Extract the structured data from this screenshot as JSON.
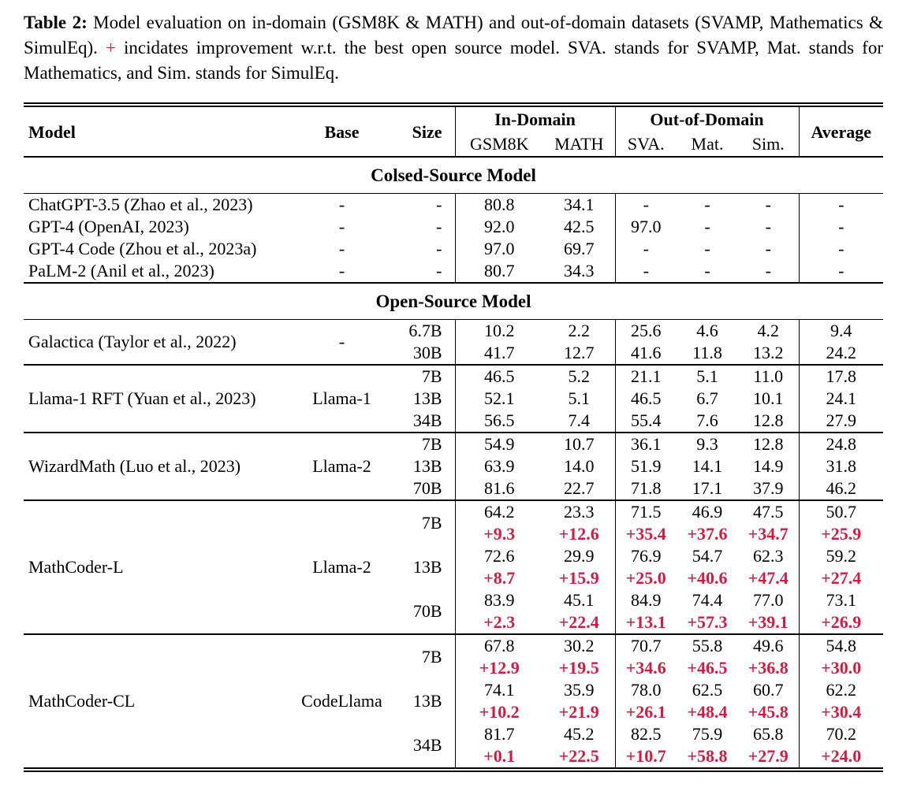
{
  "caption": {
    "label": "Table 2:",
    "before_plus": "  Model evaluation on in-domain (GSM8K & MATH) and out-of-domain datasets (SVAMP, Mathematics & SimulEq). ",
    "plus": "+",
    "after_plus": " incidates improvement w.r.t. the best open source model. SVA. stands for SVAMP, Mat. stands for Mathematics, and Sim. stands for SimulEq."
  },
  "colors": {
    "improvement_red": "#d01c42",
    "text_black": "#000000",
    "background": "#ffffff"
  },
  "header": {
    "model": "Model",
    "base": "Base",
    "size": "Size",
    "in_domain": "In-Domain",
    "out_of_domain": "Out-of-Domain",
    "average": "Average",
    "sub": [
      "GSM8K",
      "MATH",
      "SVA.",
      "Mat.",
      "Sim."
    ]
  },
  "sections": [
    {
      "title": "Colsed-Source Model",
      "groups": [
        {
          "model": "ChatGPT-3.5 (Zhao et al., 2023)",
          "base": "-",
          "rows": [
            {
              "size": "-",
              "values": [
                "80.8",
                "34.1",
                "-",
                "-",
                "-",
                "-"
              ]
            }
          ]
        },
        {
          "model": "GPT-4 (OpenAI, 2023)",
          "base": "-",
          "rows": [
            {
              "size": "-",
              "values": [
                "92.0",
                "42.5",
                "97.0",
                "-",
                "-",
                "-"
              ]
            }
          ]
        },
        {
          "model": "GPT-4 Code (Zhou et al., 2023a)",
          "base": "-",
          "rows": [
            {
              "size": "-",
              "values": [
                "97.0",
                "69.7",
                "-",
                "-",
                "-",
                "-"
              ]
            }
          ]
        },
        {
          "model": "PaLM-2 (Anil et al., 2023)",
          "base": "-",
          "rows": [
            {
              "size": "-",
              "values": [
                "80.7",
                "34.3",
                "-",
                "-",
                "-",
                "-"
              ]
            }
          ]
        }
      ]
    },
    {
      "title": "Open-Source Model",
      "groups": [
        {
          "model": "Galactica (Taylor et al., 2022)",
          "base": "-",
          "rows": [
            {
              "size": "6.7B",
              "values": [
                "10.2",
                "2.2",
                "25.6",
                "4.6",
                "4.2",
                "9.4"
              ]
            },
            {
              "size": "30B",
              "values": [
                "41.7",
                "12.7",
                "41.6",
                "11.8",
                "13.2",
                "24.2"
              ]
            }
          ]
        },
        {
          "model": "Llama-1 RFT (Yuan et al., 2023)",
          "base": "Llama-1",
          "rows": [
            {
              "size": "7B",
              "values": [
                "46.5",
                "5.2",
                "21.1",
                "5.1",
                "11.0",
                "17.8"
              ]
            },
            {
              "size": "13B",
              "values": [
                "52.1",
                "5.1",
                "46.5",
                "6.7",
                "10.1",
                "24.1"
              ]
            },
            {
              "size": "34B",
              "values": [
                "56.5",
                "7.4",
                "55.4",
                "7.6",
                "12.8",
                "27.9"
              ]
            }
          ]
        },
        {
          "model": "WizardMath (Luo et al., 2023)",
          "base": "Llama-2",
          "rows": [
            {
              "size": "7B",
              "values": [
                "54.9",
                "10.7",
                "36.1",
                "9.3",
                "12.8",
                "24.8"
              ]
            },
            {
              "size": "13B",
              "values": [
                "63.9",
                "14.0",
                "51.9",
                "14.1",
                "14.9",
                "31.8"
              ]
            },
            {
              "size": "70B",
              "values": [
                "81.6",
                "22.7",
                "71.8",
                "17.1",
                "37.9",
                "46.2"
              ]
            }
          ]
        },
        {
          "model": "MathCoder-L",
          "base": "Llama-2",
          "rows": [
            {
              "size": "7B",
              "values": [
                "64.2",
                "23.3",
                "71.5",
                "46.9",
                "47.5",
                "50.7"
              ],
              "delta": [
                "+9.3",
                "+12.6",
                "+35.4",
                "+37.6",
                "+34.7",
                "+25.9"
              ]
            },
            {
              "size": "13B",
              "values": [
                "72.6",
                "29.9",
                "76.9",
                "54.7",
                "62.3",
                "59.2"
              ],
              "delta": [
                "+8.7",
                "+15.9",
                "+25.0",
                "+40.6",
                "+47.4",
                "+27.4"
              ]
            },
            {
              "size": "70B",
              "values": [
                "83.9",
                "45.1",
                "84.9",
                "74.4",
                "77.0",
                "73.1"
              ],
              "delta": [
                "+2.3",
                "+22.4",
                "+13.1",
                "+57.3",
                "+39.1",
                "+26.9"
              ]
            }
          ]
        },
        {
          "model": "MathCoder-CL",
          "base": "CodeLlama",
          "rows": [
            {
              "size": "7B",
              "values": [
                "67.8",
                "30.2",
                "70.7",
                "55.8",
                "49.6",
                "54.8"
              ],
              "delta": [
                "+12.9",
                "+19.5",
                "+34.6",
                "+46.5",
                "+36.8",
                "+30.0"
              ]
            },
            {
              "size": "13B",
              "values": [
                "74.1",
                "35.9",
                "78.0",
                "62.5",
                "60.7",
                "62.2"
              ],
              "delta": [
                "+10.2",
                "+21.9",
                "+26.1",
                "+48.4",
                "+45.8",
                "+30.4"
              ]
            },
            {
              "size": "34B",
              "values": [
                "81.7",
                "45.2",
                "82.5",
                "75.9",
                "65.8",
                "70.2"
              ],
              "delta": [
                "+0.1",
                "+22.5",
                "+10.7",
                "+58.8",
                "+27.9",
                "+24.0"
              ]
            }
          ]
        }
      ]
    }
  ]
}
